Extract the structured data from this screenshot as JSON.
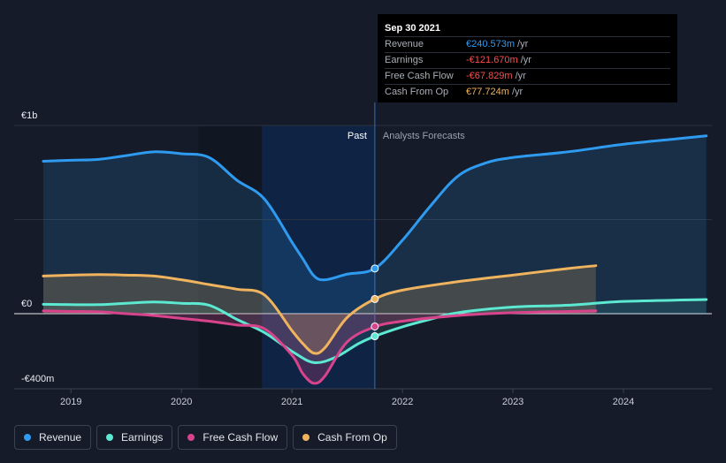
{
  "tooltip": {
    "date": "Sep 30 2021",
    "rows": [
      {
        "name": "Revenue",
        "value": "€240.573m",
        "unit": "/yr",
        "color": "#2f9bf0"
      },
      {
        "name": "Earnings",
        "value": "-€121.670m",
        "unit": "/yr",
        "color": "#ff4d4d"
      },
      {
        "name": "Free Cash Flow",
        "value": "-€67.829m",
        "unit": "/yr",
        "color": "#ff4d4d"
      },
      {
        "name": "Cash From Op",
        "value": "€77.724m",
        "unit": "/yr",
        "color": "#f0b35e"
      }
    ]
  },
  "legend": [
    {
      "label": "Revenue",
      "color": "#2f9bf0"
    },
    {
      "label": "Earnings",
      "color": "#5ce8d1"
    },
    {
      "label": "Free Cash Flow",
      "color": "#d8448c"
    },
    {
      "label": "Cash From Op",
      "color": "#f0b35e"
    }
  ],
  "chart_data": {
    "type": "line",
    "y_tick_labels": [
      "€1b",
      "€0",
      "-€400m"
    ],
    "x_tick_labels": [
      "2019",
      "2020",
      "2021",
      "2022",
      "2023",
      "2024"
    ],
    "xlim": [
      2018.5,
      2024.8
    ],
    "ylim": [
      -400,
      1000
    ],
    "past_label": "Past",
    "forecast_label": "Analysts Forecasts",
    "past_end": 2021.75,
    "highlight_start": 2020.73,
    "series": [
      {
        "name": "Revenue",
        "color": "#2f9bf0",
        "x": [
          2018.75,
          2019.0,
          2019.25,
          2019.5,
          2019.75,
          2020.0,
          2020.25,
          2020.5,
          2020.75,
          2021.0,
          2021.1,
          2021.2,
          2021.3,
          2021.5,
          2021.75,
          2022.0,
          2022.25,
          2022.5,
          2022.75,
          2023.0,
          2023.5,
          2024.0,
          2024.5,
          2024.75
        ],
        "values": [
          810,
          815,
          820,
          840,
          860,
          850,
          830,
          710,
          610,
          380,
          290,
          200,
          180,
          210,
          240,
          390,
          570,
          730,
          800,
          830,
          860,
          900,
          930,
          945
        ]
      },
      {
        "name": "Earnings",
        "color": "#5ce8d1",
        "x": [
          2018.75,
          2019.0,
          2019.25,
          2019.5,
          2019.75,
          2020.0,
          2020.25,
          2020.5,
          2020.75,
          2021.0,
          2021.2,
          2021.4,
          2021.6,
          2021.75,
          2022.0,
          2022.25,
          2022.5,
          2023.0,
          2023.5,
          2024.0,
          2024.75
        ],
        "values": [
          50,
          48,
          48,
          55,
          62,
          55,
          45,
          -30,
          -100,
          -200,
          -260,
          -230,
          -160,
          -120,
          -70,
          -30,
          5,
          35,
          45,
          65,
          75
        ]
      },
      {
        "name": "Free Cash Flow",
        "color": "#d8448c",
        "x": [
          2018.75,
          2019.0,
          2019.25,
          2019.5,
          2019.75,
          2020.0,
          2020.25,
          2020.5,
          2020.75,
          2021.0,
          2021.1,
          2021.2,
          2021.3,
          2021.5,
          2021.75,
          2022.0,
          2022.5,
          2023.0,
          2023.5,
          2023.75
        ],
        "values": [
          15,
          12,
          10,
          0,
          -10,
          -25,
          -40,
          -60,
          -80,
          -220,
          -320,
          -370,
          -330,
          -150,
          -70,
          -40,
          -10,
          5,
          12,
          15
        ]
      },
      {
        "name": "Cash From Op",
        "color": "#f0b35e",
        "x": [
          2018.75,
          2019.0,
          2019.25,
          2019.5,
          2019.75,
          2020.0,
          2020.25,
          2020.5,
          2020.75,
          2021.0,
          2021.1,
          2021.2,
          2021.3,
          2021.5,
          2021.75,
          2022.0,
          2022.5,
          2023.0,
          2023.5,
          2023.75
        ],
        "values": [
          200,
          205,
          208,
          205,
          200,
          180,
          155,
          130,
          100,
          -90,
          -160,
          -210,
          -180,
          -20,
          78,
          125,
          170,
          205,
          240,
          255
        ]
      }
    ],
    "highlight_points": [
      {
        "series": "Revenue",
        "x": 2021.75,
        "value": 240
      },
      {
        "series": "Earnings",
        "x": 2021.75,
        "value": -120
      },
      {
        "series": "Free Cash Flow",
        "x": 2021.75,
        "value": -68
      },
      {
        "series": "Cash From Op",
        "x": 2021.75,
        "value": 78
      }
    ]
  }
}
